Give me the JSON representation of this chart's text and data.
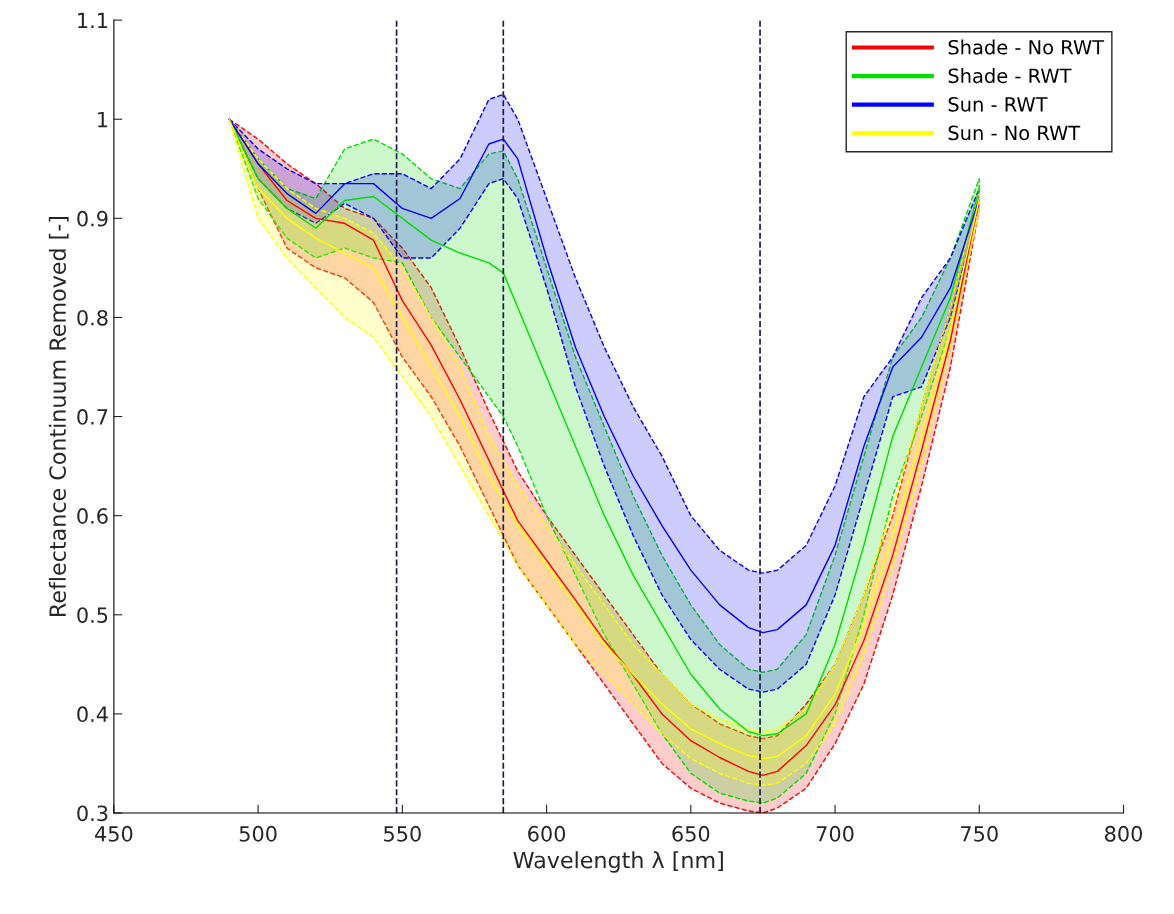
{
  "chart_data": {
    "type": "line",
    "xlabel": "Wavelength λ [nm]",
    "ylabel": "Reflectance Continuum Removed [-]",
    "x": [
      490,
      500,
      510,
      520,
      530,
      540,
      550,
      560,
      570,
      580,
      585,
      590,
      600,
      610,
      620,
      630,
      640,
      650,
      660,
      670,
      675,
      680,
      690,
      700,
      710,
      720,
      730,
      740,
      750
    ],
    "series": [
      {
        "name": "Shade - No RWT",
        "color": "#ff0000",
        "values": [
          1.0,
          0.955,
          0.918,
          0.9,
          0.895,
          0.878,
          0.817,
          0.772,
          0.717,
          0.656,
          0.625,
          0.595,
          0.555,
          0.515,
          0.474,
          0.439,
          0.4,
          0.373,
          0.356,
          0.342,
          0.338,
          0.342,
          0.368,
          0.409,
          0.474,
          0.56,
          0.666,
          0.777,
          0.92
        ],
        "lower": [
          1.0,
          0.93,
          0.87,
          0.85,
          0.84,
          0.815,
          0.76,
          0.72,
          0.67,
          0.61,
          0.58,
          0.55,
          0.51,
          0.47,
          0.43,
          0.39,
          0.35,
          0.325,
          0.31,
          0.302,
          0.3,
          0.305,
          0.325,
          0.37,
          0.43,
          0.52,
          0.63,
          0.75,
          0.91
        ],
        "upper": [
          1.0,
          0.98,
          0.955,
          0.935,
          0.91,
          0.9,
          0.87,
          0.83,
          0.77,
          0.705,
          0.675,
          0.645,
          0.6,
          0.56,
          0.52,
          0.48,
          0.44,
          0.41,
          0.39,
          0.378,
          0.375,
          0.378,
          0.41,
          0.45,
          0.52,
          0.6,
          0.71,
          0.81,
          0.93
        ]
      },
      {
        "name": "Shade - RWT",
        "color": "#00dd00",
        "values": [
          1.0,
          0.94,
          0.91,
          0.89,
          0.918,
          0.922,
          0.9,
          0.878,
          0.865,
          0.855,
          0.845,
          0.81,
          0.74,
          0.67,
          0.6,
          0.54,
          0.49,
          0.44,
          0.405,
          0.382,
          0.378,
          0.38,
          0.4,
          0.47,
          0.57,
          0.68,
          0.75,
          0.82,
          0.93
        ],
        "lower": [
          1.0,
          0.92,
          0.88,
          0.86,
          0.87,
          0.86,
          0.855,
          0.8,
          0.76,
          0.72,
          0.7,
          0.67,
          0.6,
          0.54,
          0.48,
          0.43,
          0.38,
          0.34,
          0.32,
          0.312,
          0.31,
          0.315,
          0.34,
          0.4,
          0.5,
          0.62,
          0.7,
          0.79,
          0.92
        ],
        "upper": [
          1.0,
          0.96,
          0.93,
          0.92,
          0.97,
          0.98,
          0.965,
          0.94,
          0.93,
          0.965,
          0.968,
          0.94,
          0.85,
          0.76,
          0.69,
          0.62,
          0.56,
          0.51,
          0.47,
          0.445,
          0.442,
          0.445,
          0.48,
          0.56,
          0.66,
          0.76,
          0.8,
          0.86,
          0.94
        ]
      },
      {
        "name": "Sun - RWT",
        "color": "#0000ff",
        "values": [
          1.0,
          0.955,
          0.925,
          0.905,
          0.935,
          0.935,
          0.91,
          0.9,
          0.92,
          0.975,
          0.98,
          0.96,
          0.86,
          0.77,
          0.7,
          0.64,
          0.59,
          0.545,
          0.51,
          0.487,
          0.482,
          0.485,
          0.51,
          0.57,
          0.67,
          0.75,
          0.78,
          0.83,
          0.92
        ],
        "lower": [
          1.0,
          0.94,
          0.91,
          0.895,
          0.915,
          0.9,
          0.86,
          0.86,
          0.89,
          0.935,
          0.94,
          0.92,
          0.83,
          0.73,
          0.65,
          0.58,
          0.52,
          0.475,
          0.445,
          0.425,
          0.422,
          0.425,
          0.45,
          0.52,
          0.62,
          0.72,
          0.73,
          0.8,
          0.915
        ],
        "upper": [
          1.0,
          0.97,
          0.95,
          0.935,
          0.935,
          0.945,
          0.945,
          0.93,
          0.96,
          1.02,
          1.025,
          1.0,
          0.92,
          0.84,
          0.77,
          0.71,
          0.66,
          0.6,
          0.565,
          0.545,
          0.542,
          0.545,
          0.57,
          0.63,
          0.72,
          0.76,
          0.82,
          0.86,
          0.93
        ]
      },
      {
        "name": "Sun - No RWT",
        "color": "#ffff00",
        "values": [
          1.0,
          0.93,
          0.9,
          0.88,
          0.865,
          0.85,
          0.8,
          0.75,
          0.7,
          0.64,
          0.615,
          0.59,
          0.55,
          0.51,
          0.47,
          0.44,
          0.41,
          0.385,
          0.37,
          0.358,
          0.355,
          0.357,
          0.378,
          0.42,
          0.49,
          0.58,
          0.68,
          0.79,
          0.92
        ],
        "lower": [
          1.0,
          0.9,
          0.86,
          0.83,
          0.8,
          0.78,
          0.74,
          0.7,
          0.65,
          0.6,
          0.575,
          0.55,
          0.51,
          0.47,
          0.44,
          0.41,
          0.38,
          0.355,
          0.34,
          0.33,
          0.328,
          0.33,
          0.35,
          0.39,
          0.46,
          0.55,
          0.65,
          0.77,
          0.91
        ],
        "upper": [
          1.0,
          0.96,
          0.93,
          0.91,
          0.9,
          0.885,
          0.85,
          0.8,
          0.75,
          0.68,
          0.655,
          0.63,
          0.59,
          0.55,
          0.51,
          0.47,
          0.44,
          0.41,
          0.395,
          0.385,
          0.382,
          0.385,
          0.405,
          0.45,
          0.52,
          0.61,
          0.71,
          0.81,
          0.93
        ]
      }
    ],
    "xlim": [
      450,
      800
    ],
    "xticks": [
      450,
      500,
      550,
      600,
      650,
      700,
      750,
      800
    ],
    "ylim": [
      0.3,
      1.1
    ],
    "yticks": [
      0.3,
      0.4,
      0.5,
      0.6,
      0.7,
      0.8,
      0.9,
      1,
      1.1
    ],
    "ref_lines": [
      {
        "axis": "x",
        "value": 548,
        "color": "#1a1a4a",
        "line_style": "dashed"
      },
      {
        "axis": "x",
        "value": 585,
        "color": "#1a1a4a",
        "line_style": "dashed"
      },
      {
        "axis": "x",
        "value": 674,
        "color": "#1a1a4a",
        "line_style": "dashed"
      }
    ],
    "legend": "top right",
    "grid": false,
    "marker": "none",
    "line_style": "solid"
  }
}
